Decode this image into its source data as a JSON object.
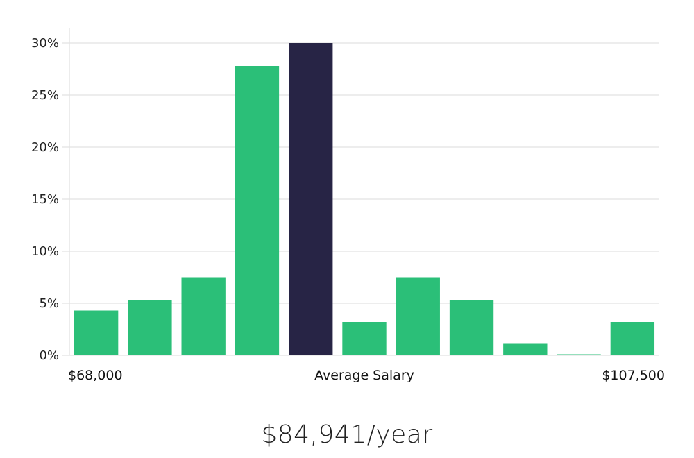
{
  "chart_data": {
    "type": "bar",
    "title": "",
    "xlabel": "",
    "ylabel": "",
    "ylim": [
      0,
      30
    ],
    "grid": true,
    "yticks": [
      "0%",
      "5%",
      "10%",
      "15%",
      "20%",
      "25%",
      "30%"
    ],
    "ytick_values": [
      0,
      5,
      10,
      15,
      20,
      25,
      30
    ],
    "values": [
      4.3,
      5.3,
      7.5,
      27.8,
      30.0,
      3.2,
      7.5,
      5.3,
      1.1,
      0.1,
      3.2
    ],
    "highlight_index": 4,
    "x_labels": {
      "left": "$68,000",
      "center": "Average Salary",
      "right": "$107,500"
    }
  },
  "colors": {
    "bar": "#2bbf78",
    "highlight": "#272445",
    "grid": "#e2e2e2",
    "axis": "#d9d9d9"
  },
  "summary": {
    "average_salary": "$84,941/year"
  }
}
